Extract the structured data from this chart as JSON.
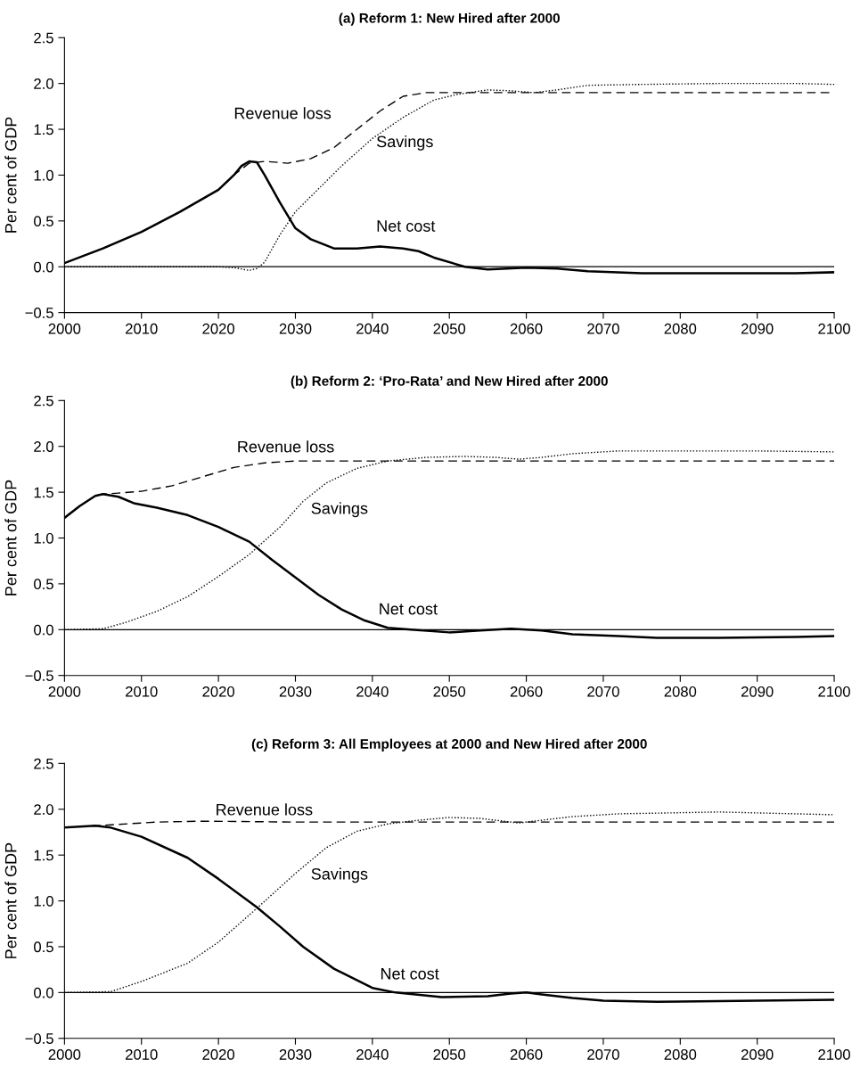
{
  "chart_data": [
    {
      "type": "line",
      "title": "(a) Reform 1: New Hired after 2000",
      "ylabel": "Per cent of GDP",
      "xlim": [
        2000,
        2100
      ],
      "xticks": [
        2000,
        2010,
        2020,
        2030,
        2040,
        2050,
        2060,
        2070,
        2080,
        2090,
        2100
      ],
      "ylim": [
        -0.5,
        2.5
      ],
      "yticks": [
        {
          "value": -0.5,
          "label": "−0.5"
        },
        {
          "value": 0,
          "label": "0.0"
        },
        {
          "value": 0.5,
          "label": "0.5"
        },
        {
          "value": 1,
          "label": "1.0"
        },
        {
          "value": 1.5,
          "label": "1.5"
        },
        {
          "value": 2,
          "label": "2.0"
        },
        {
          "value": 2.5,
          "label": "2.5"
        }
      ],
      "grid": false,
      "legend": false,
      "ref_lines": [
        {
          "axis": "y",
          "value": 0,
          "color": "#000000",
          "line_style": "solid"
        }
      ],
      "series": [
        {
          "name": "Net cost",
          "color": "#000000",
          "line_style": "solid",
          "x": [
            2000,
            2005,
            2010,
            2015,
            2020,
            2022,
            2023,
            2024,
            2025,
            2026,
            2028,
            2030,
            2032,
            2035,
            2038,
            2041,
            2044,
            2046,
            2048,
            2052,
            2055,
            2060,
            2064,
            2068,
            2075,
            2085,
            2095,
            2100
          ],
          "values": [
            0.04,
            0.2,
            0.38,
            0.6,
            0.84,
            1.0,
            1.1,
            1.15,
            1.14,
            1.0,
            0.7,
            0.42,
            0.3,
            0.2,
            0.2,
            0.22,
            0.2,
            0.17,
            0.1,
            0.0,
            -0.03,
            -0.01,
            -0.02,
            -0.05,
            -0.07,
            -0.07,
            -0.07,
            -0.06
          ]
        },
        {
          "name": "Revenue loss",
          "color": "#000000",
          "line_style": "dashed",
          "x": [
            2000,
            2005,
            2010,
            2015,
            2020,
            2022,
            2024,
            2026,
            2029,
            2032,
            2035,
            2038,
            2041,
            2044,
            2047,
            2052,
            2060,
            2070,
            2080,
            2090,
            2100
          ],
          "values": [
            0.04,
            0.2,
            0.38,
            0.6,
            0.84,
            1.0,
            1.13,
            1.15,
            1.13,
            1.18,
            1.3,
            1.5,
            1.7,
            1.86,
            1.9,
            1.9,
            1.9,
            1.9,
            1.9,
            1.9,
            1.9
          ]
        },
        {
          "name": "Savings",
          "color": "#000000",
          "line_style": "dotted",
          "x": [
            2000,
            2010,
            2020,
            2022,
            2024,
            2025,
            2026,
            2028,
            2030,
            2033,
            2036,
            2040,
            2044,
            2048,
            2051,
            2055,
            2058,
            2061,
            2064,
            2068,
            2075,
            2085,
            2095,
            2100
          ],
          "values": [
            0,
            0,
            0,
            -0.01,
            -0.04,
            -0.02,
            0.05,
            0.35,
            0.6,
            0.85,
            1.1,
            1.4,
            1.63,
            1.82,
            1.88,
            1.93,
            1.92,
            1.9,
            1.93,
            1.98,
            1.99,
            2.0,
            2.0,
            1.99
          ]
        }
      ]
    },
    {
      "type": "line",
      "title": "(b) Reform 2: ‘Pro-Rata’ and New Hired after 2000",
      "ylabel": "Per cent of GDP",
      "xlim": [
        2000,
        2100
      ],
      "xticks": [
        2000,
        2010,
        2020,
        2030,
        2040,
        2050,
        2060,
        2070,
        2080,
        2090,
        2100
      ],
      "ylim": [
        -0.5,
        2.5
      ],
      "yticks": [
        {
          "value": -0.5,
          "label": "−0.5"
        },
        {
          "value": 0,
          "label": "0.0"
        },
        {
          "value": 0.5,
          "label": "0.5"
        },
        {
          "value": 1,
          "label": "1.0"
        },
        {
          "value": 1.5,
          "label": "1.5"
        },
        {
          "value": 2,
          "label": "2.0"
        },
        {
          "value": 2.5,
          "label": "2.5"
        }
      ],
      "grid": false,
      "legend": false,
      "ref_lines": [
        {
          "axis": "y",
          "value": 0,
          "color": "#000000",
          "line_style": "solid"
        }
      ],
      "series": [
        {
          "name": "Net cost",
          "color": "#000000",
          "line_style": "solid",
          "x": [
            2000,
            2002,
            2004,
            2005,
            2007,
            2009,
            2012,
            2016,
            2020,
            2024,
            2027,
            2030,
            2033,
            2036,
            2039,
            2042,
            2045,
            2050,
            2054,
            2058,
            2062,
            2066,
            2072,
            2077,
            2085,
            2095,
            2100
          ],
          "values": [
            1.22,
            1.35,
            1.46,
            1.48,
            1.45,
            1.38,
            1.33,
            1.25,
            1.12,
            0.96,
            0.76,
            0.57,
            0.38,
            0.22,
            0.1,
            0.02,
            0.0,
            -0.03,
            -0.01,
            0.01,
            -0.01,
            -0.05,
            -0.07,
            -0.09,
            -0.09,
            -0.08,
            -0.07
          ]
        },
        {
          "name": "Revenue loss",
          "color": "#000000",
          "line_style": "dashed",
          "x": [
            2000,
            2002,
            2004,
            2005,
            2007,
            2010,
            2014,
            2018,
            2022,
            2026,
            2030,
            2040,
            2100
          ],
          "values": [
            1.22,
            1.35,
            1.46,
            1.48,
            1.49,
            1.51,
            1.57,
            1.67,
            1.77,
            1.82,
            1.84,
            1.84,
            1.84
          ]
        },
        {
          "name": "Savings",
          "color": "#000000",
          "line_style": "dotted",
          "x": [
            2000,
            2005,
            2008,
            2012,
            2016,
            2020,
            2024,
            2028,
            2031,
            2034,
            2038,
            2042,
            2047,
            2052,
            2056,
            2059,
            2062,
            2066,
            2072,
            2080,
            2090,
            2100
          ],
          "values": [
            0,
            0.01,
            0.08,
            0.2,
            0.36,
            0.58,
            0.82,
            1.12,
            1.4,
            1.6,
            1.76,
            1.84,
            1.88,
            1.89,
            1.88,
            1.86,
            1.88,
            1.92,
            1.95,
            1.95,
            1.95,
            1.94
          ]
        }
      ]
    },
    {
      "type": "line",
      "title": "(c) Reform 3: All Employees at 2000 and New Hired after 2000",
      "ylabel": "Per cent of GDP",
      "xlim": [
        2000,
        2100
      ],
      "xticks": [
        2000,
        2010,
        2020,
        2030,
        2040,
        2050,
        2060,
        2070,
        2080,
        2090,
        2100
      ],
      "ylim": [
        -0.5,
        2.5
      ],
      "yticks": [
        {
          "value": -0.5,
          "label": "−0.5"
        },
        {
          "value": 0,
          "label": "0.0"
        },
        {
          "value": 0.5,
          "label": "0.5"
        },
        {
          "value": 1,
          "label": "1.0"
        },
        {
          "value": 1.5,
          "label": "1.5"
        },
        {
          "value": 2,
          "label": "2.0"
        },
        {
          "value": 2.5,
          "label": "2.5"
        }
      ],
      "grid": false,
      "legend": false,
      "ref_lines": [
        {
          "axis": "y",
          "value": 0,
          "color": "#000000",
          "line_style": "solid"
        }
      ],
      "series": [
        {
          "name": "Net cost",
          "color": "#000000",
          "line_style": "solid",
          "x": [
            2000,
            2004,
            2006,
            2010,
            2016,
            2020,
            2025,
            2028,
            2031,
            2035,
            2040,
            2043,
            2049,
            2055,
            2058,
            2060,
            2062,
            2066,
            2070,
            2077,
            2090,
            2100
          ],
          "values": [
            1.8,
            1.82,
            1.8,
            1.7,
            1.47,
            1.24,
            0.93,
            0.72,
            0.5,
            0.26,
            0.05,
            0.0,
            -0.05,
            -0.04,
            -0.01,
            0.0,
            -0.02,
            -0.06,
            -0.09,
            -0.1,
            -0.09,
            -0.08
          ]
        },
        {
          "name": "Revenue loss",
          "color": "#000000",
          "line_style": "dashed",
          "x": [
            2000,
            2004,
            2006,
            2012,
            2018,
            2030,
            2100
          ],
          "values": [
            1.8,
            1.82,
            1.83,
            1.86,
            1.87,
            1.86,
            1.86
          ]
        },
        {
          "name": "Savings",
          "color": "#000000",
          "line_style": "dotted",
          "x": [
            2000,
            2006,
            2010,
            2016,
            2020,
            2025,
            2030,
            2034,
            2038,
            2042,
            2046,
            2050,
            2054,
            2057,
            2059,
            2062,
            2066,
            2072,
            2085,
            2100
          ],
          "values": [
            0,
            0.01,
            0.12,
            0.32,
            0.55,
            0.92,
            1.3,
            1.58,
            1.76,
            1.84,
            1.88,
            1.91,
            1.9,
            1.87,
            1.85,
            1.88,
            1.92,
            1.95,
            1.97,
            1.94
          ]
        }
      ]
    }
  ]
}
